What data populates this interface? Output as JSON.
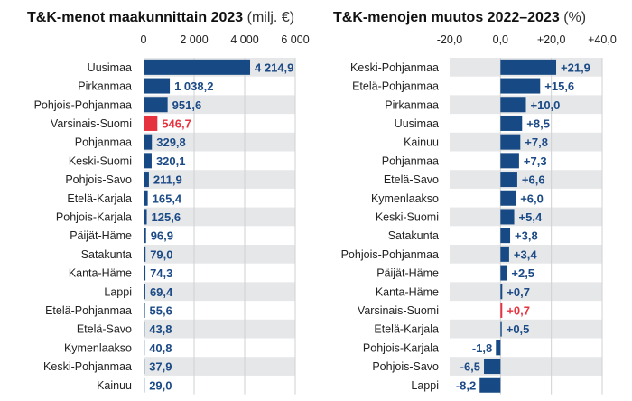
{
  "colors": {
    "bar": "#174a84",
    "highlight": "#e5323e",
    "row_shade": "#e6e7e9",
    "grid": "#cfd1d4"
  },
  "chart_data": [
    {
      "type": "bar",
      "orientation": "horizontal",
      "title": "T&K-menot maakunnittain 2023",
      "unit": "(milj. €)",
      "xlim": [
        0,
        6000
      ],
      "ticks": [
        0,
        2000,
        4000,
        6000
      ],
      "tick_labels": [
        "0",
        "2 000",
        "4 000",
        "6 000"
      ],
      "grid": true,
      "highlight": "Varsinais-Suomi",
      "categories": [
        "Uusimaa",
        "Pirkanmaa",
        "Pohjois-Pohjanmaa",
        "Varsinais-Suomi",
        "Pohjanmaa",
        "Keski-Suomi",
        "Pohjois-Savo",
        "Etelä-Karjala",
        "Pohjois-Karjala",
        "Päijät-Häme",
        "Satakunta",
        "Kanta-Häme",
        "Lappi",
        "Etelä-Pohjanmaa",
        "Etelä-Savo",
        "Kymenlaakso",
        "Keski-Pohjanmaa",
        "Kainuu"
      ],
      "values": [
        4214.9,
        1038.2,
        951.6,
        546.7,
        329.8,
        320.1,
        211.9,
        165.4,
        125.6,
        96.9,
        79.0,
        74.3,
        69.4,
        55.6,
        43.8,
        40.8,
        37.9,
        29.0
      ],
      "value_labels": [
        "4 214,9",
        "1 038,2",
        "951,6",
        "546,7",
        "329,8",
        "320,1",
        "211,9",
        "165,4",
        "125,6",
        "96,9",
        "79,0",
        "74,3",
        "69,4",
        "55,6",
        "43,8",
        "40,8",
        "37,9",
        "29,0"
      ]
    },
    {
      "type": "bar",
      "orientation": "horizontal",
      "title": "T&K-menojen muutos 2022–2023",
      "unit": "(%)",
      "xlim": [
        -20,
        40
      ],
      "ticks": [
        -20,
        0,
        20,
        40
      ],
      "tick_labels": [
        "-20,0",
        "0,0",
        "+20,0",
        "+40,0"
      ],
      "grid": true,
      "highlight": "Varsinais-Suomi",
      "categories": [
        "Keski-Pohjanmaa",
        "Etelä-Pohjanmaa",
        "Pirkanmaa",
        "Uusimaa",
        "Kainuu",
        "Pohjanmaa",
        "Etelä-Savo",
        "Kymenlaakso",
        "Keski-Suomi",
        "Satakunta",
        "Pohjois-Pohjanmaa",
        "Päijät-Häme",
        "Kanta-Häme",
        "Varsinais-Suomi",
        "Etelä-Karjala",
        "Pohjois-Karjala",
        "Pohjois-Savo",
        "Lappi"
      ],
      "values": [
        21.9,
        15.6,
        10.0,
        8.5,
        7.8,
        7.3,
        6.6,
        6.0,
        5.4,
        3.8,
        3.4,
        2.5,
        0.7,
        0.7,
        0.5,
        -1.8,
        -6.5,
        -8.2
      ],
      "value_labels": [
        "+21,9",
        "+15,6",
        "+10,0",
        "+8,5",
        "+7,8",
        "+7,3",
        "+6,6",
        "+6,0",
        "+5,4",
        "+3,8",
        "+3,4",
        "+2,5",
        "+0,7",
        "+0,7",
        "+0,5",
        "-1,8",
        "-6,5",
        "-8,2"
      ]
    }
  ]
}
